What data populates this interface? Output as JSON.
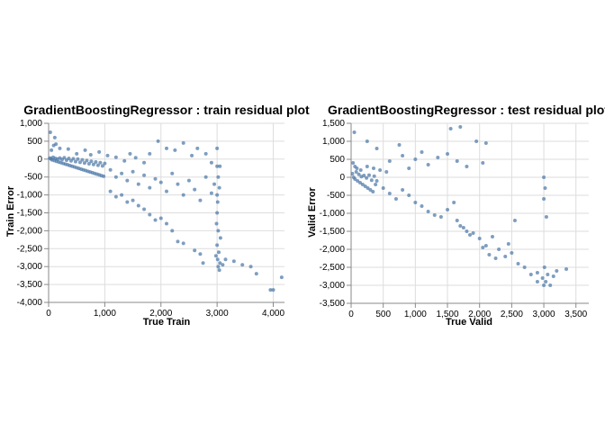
{
  "chart_data": [
    {
      "type": "scatter",
      "title": "GradientBoostingRegressor : train residual plot",
      "xlabel": "True Train",
      "ylabel": "Train Error",
      "xlim": [
        0,
        4200
      ],
      "ylim": [
        -4000,
        1000
      ],
      "xticks": [
        0,
        1000,
        2000,
        3000,
        4000
      ],
      "yticks": [
        1000,
        500,
        0,
        -500,
        -1000,
        -1500,
        -2000,
        -2500,
        -3000,
        -3500,
        -4000
      ],
      "xtick_labels": [
        "0",
        "1,000",
        "2,000",
        "3,000",
        "4,000"
      ],
      "ytick_labels": [
        "1,000",
        "500",
        "0",
        "-500",
        "-1,000",
        "-1,500",
        "-2,000",
        "-2,500",
        "-3,000",
        "-3,500",
        "-4,000"
      ],
      "grid": true,
      "color": "#4c78a8",
      "points": [
        [
          20,
          30
        ],
        [
          40,
          10
        ],
        [
          60,
          -20
        ],
        [
          80,
          50
        ],
        [
          100,
          -40
        ],
        [
          120,
          20
        ],
        [
          140,
          -60
        ],
        [
          160,
          0
        ],
        [
          180,
          -80
        ],
        [
          200,
          30
        ],
        [
          220,
          -100
        ],
        [
          240,
          -10
        ],
        [
          260,
          -120
        ],
        [
          280,
          40
        ],
        [
          300,
          -140
        ],
        [
          320,
          -30
        ],
        [
          340,
          -160
        ],
        [
          360,
          20
        ],
        [
          380,
          -180
        ],
        [
          400,
          -50
        ],
        [
          420,
          -200
        ],
        [
          440,
          10
        ],
        [
          460,
          -220
        ],
        [
          480,
          -70
        ],
        [
          500,
          -240
        ],
        [
          520,
          0
        ],
        [
          540,
          -260
        ],
        [
          560,
          -90
        ],
        [
          580,
          -280
        ],
        [
          600,
          -20
        ],
        [
          620,
          -300
        ],
        [
          640,
          -110
        ],
        [
          660,
          -320
        ],
        [
          680,
          -40
        ],
        [
          700,
          -340
        ],
        [
          720,
          -130
        ],
        [
          740,
          -360
        ],
        [
          760,
          -60
        ],
        [
          780,
          -380
        ],
        [
          800,
          -150
        ],
        [
          820,
          -400
        ],
        [
          840,
          -80
        ],
        [
          860,
          -420
        ],
        [
          880,
          -170
        ],
        [
          900,
          -440
        ],
        [
          920,
          -100
        ],
        [
          940,
          -460
        ],
        [
          960,
          -190
        ],
        [
          980,
          -480
        ],
        [
          1000,
          -120
        ],
        [
          50,
          250
        ],
        [
          90,
          380
        ],
        [
          110,
          600
        ],
        [
          130,
          420
        ],
        [
          30,
          750
        ],
        [
          200,
          300
        ],
        [
          350,
          280
        ],
        [
          500,
          150
        ],
        [
          650,
          250
        ],
        [
          750,
          120
        ],
        [
          900,
          200
        ],
        [
          1050,
          100
        ],
        [
          1200,
          50
        ],
        [
          1350,
          -50
        ],
        [
          1450,
          150
        ],
        [
          1550,
          40
        ],
        [
          1700,
          -100
        ],
        [
          1800,
          150
        ],
        [
          1950,
          500
        ],
        [
          2100,
          300
        ],
        [
          2250,
          250
        ],
        [
          2400,
          450
        ],
        [
          2550,
          100
        ],
        [
          2650,
          300
        ],
        [
          2800,
          150
        ],
        [
          2900,
          -100
        ],
        [
          3000,
          300
        ],
        [
          3050,
          -200
        ],
        [
          1100,
          -300
        ],
        [
          1200,
          -500
        ],
        [
          1300,
          -400
        ],
        [
          1400,
          -600
        ],
        [
          1500,
          -350
        ],
        [
          1600,
          -700
        ],
        [
          1700,
          -450
        ],
        [
          1800,
          -800
        ],
        [
          1900,
          -550
        ],
        [
          2000,
          -650
        ],
        [
          2100,
          -900
        ],
        [
          2200,
          -400
        ],
        [
          2300,
          -700
        ],
        [
          2400,
          -1000
        ],
        [
          2500,
          -600
        ],
        [
          2600,
          -850
        ],
        [
          2700,
          -1150
        ],
        [
          2800,
          -500
        ],
        [
          2900,
          -950
        ],
        [
          2950,
          -700
        ],
        [
          1100,
          -900
        ],
        [
          1200,
          -1050
        ],
        [
          1300,
          -1000
        ],
        [
          1400,
          -1200
        ],
        [
          1500,
          -1150
        ],
        [
          1600,
          -1300
        ],
        [
          1700,
          -1400
        ],
        [
          1800,
          -1550
        ],
        [
          1900,
          -1700
        ],
        [
          2000,
          -1650
        ],
        [
          2100,
          -1800
        ],
        [
          2200,
          -2000
        ],
        [
          2300,
          -2300
        ],
        [
          2400,
          -2350
        ],
        [
          2600,
          -2550
        ],
        [
          2700,
          -2650
        ],
        [
          2750,
          -2900
        ],
        [
          3000,
          -1000
        ],
        [
          3000,
          -1500
        ],
        [
          3020,
          -2000
        ],
        [
          3000,
          -2400
        ],
        [
          3030,
          -2600
        ],
        [
          3010,
          -2800
        ],
        [
          3050,
          -2900
        ],
        [
          3020,
          -3000
        ],
        [
          2980,
          -2700
        ],
        [
          3040,
          -3100
        ],
        [
          3100,
          -2950
        ],
        [
          3150,
          -2800
        ],
        [
          3300,
          -2850
        ],
        [
          3450,
          -2950
        ],
        [
          3600,
          -3000
        ],
        [
          3700,
          -3200
        ],
        [
          3950,
          -3650
        ],
        [
          4000,
          -3650
        ],
        [
          4150,
          -3300
        ],
        [
          3000,
          -200
        ],
        [
          3020,
          -500
        ],
        [
          3040,
          -800
        ],
        [
          3010,
          -1200
        ],
        [
          2990,
          -1800
        ],
        [
          3060,
          -2200
        ]
      ]
    },
    {
      "type": "scatter",
      "title": "GradientBoostingRegressor : test residual plot",
      "xlabel": "True Valid",
      "ylabel": "Valid Error",
      "xlim": [
        0,
        3700
      ],
      "ylim": [
        -3500,
        1500
      ],
      "xticks": [
        0,
        500,
        1000,
        1500,
        2000,
        2500,
        3000,
        3500
      ],
      "yticks": [
        1500,
        1000,
        500,
        0,
        -500,
        -1000,
        -1500,
        -2000,
        -2500,
        -3000,
        -3500
      ],
      "xtick_labels": [
        "0",
        "500",
        "1,000",
        "1,500",
        "2,000",
        "2,500",
        "3,000",
        "3,500"
      ],
      "ytick_labels": [
        "1,500",
        "1,000",
        "500",
        "0",
        "-500",
        "-1,000",
        "-1,500",
        "-2,000",
        "-2,500",
        "-3,000",
        "-3,500"
      ],
      "grid": true,
      "color": "#4c78a8",
      "points": [
        [
          20,
          100
        ],
        [
          40,
          0
        ],
        [
          60,
          -50
        ],
        [
          80,
          150
        ],
        [
          100,
          -100
        ],
        [
          120,
          80
        ],
        [
          140,
          -150
        ],
        [
          160,
          20
        ],
        [
          180,
          -200
        ],
        [
          200,
          50
        ],
        [
          220,
          -250
        ],
        [
          240,
          -20
        ],
        [
          260,
          -300
        ],
        [
          280,
          60
        ],
        [
          300,
          -350
        ],
        [
          320,
          -80
        ],
        [
          340,
          -400
        ],
        [
          360,
          30
        ],
        [
          380,
          -200
        ],
        [
          400,
          -100
        ],
        [
          30,
          400
        ],
        [
          60,
          300
        ],
        [
          90,
          250
        ],
        [
          150,
          200
        ],
        [
          250,
          300
        ],
        [
          350,
          250
        ],
        [
          450,
          200
        ],
        [
          550,
          150
        ],
        [
          50,
          1250
        ],
        [
          250,
          1000
        ],
        [
          400,
          800
        ],
        [
          600,
          450
        ],
        [
          750,
          900
        ],
        [
          800,
          600
        ],
        [
          900,
          250
        ],
        [
          1000,
          500
        ],
        [
          1100,
          700
        ],
        [
          1200,
          350
        ],
        [
          1350,
          550
        ],
        [
          1500,
          650
        ],
        [
          1550,
          1350
        ],
        [
          1650,
          450
        ],
        [
          1700,
          1400
        ],
        [
          1800,
          300
        ],
        [
          1950,
          1000
        ],
        [
          2050,
          400
        ],
        [
          2100,
          950
        ],
        [
          500,
          -300
        ],
        [
          600,
          -450
        ],
        [
          700,
          -600
        ],
        [
          800,
          -350
        ],
        [
          900,
          -500
        ],
        [
          1000,
          -700
        ],
        [
          1100,
          -800
        ],
        [
          1200,
          -950
        ],
        [
          1300,
          -1050
        ],
        [
          1400,
          -1100
        ],
        [
          1500,
          -900
        ],
        [
          1600,
          -700
        ],
        [
          1700,
          -1350
        ],
        [
          1800,
          -1500
        ],
        [
          1900,
          -1550
        ],
        [
          2000,
          -1700
        ],
        [
          2100,
          -1900
        ],
        [
          2200,
          -1650
        ],
        [
          2300,
          -2000
        ],
        [
          2400,
          -2200
        ],
        [
          2500,
          -2100
        ],
        [
          2600,
          -2400
        ],
        [
          2700,
          -2500
        ],
        [
          2800,
          -2700
        ],
        [
          2900,
          -2650
        ],
        [
          1650,
          -1200
        ],
        [
          1750,
          -1400
        ],
        [
          1850,
          -1600
        ],
        [
          2050,
          -1950
        ],
        [
          2150,
          -2150
        ],
        [
          2250,
          -2250
        ],
        [
          2450,
          -1850
        ],
        [
          2550,
          -1200
        ],
        [
          3000,
          0
        ],
        [
          3020,
          -300
        ],
        [
          3000,
          -600
        ],
        [
          3040,
          -1100
        ],
        [
          3010,
          -2500
        ],
        [
          3060,
          -2700
        ],
        [
          3030,
          -2900
        ],
        [
          3000,
          -3000
        ],
        [
          2980,
          -2800
        ],
        [
          3100,
          -3000
        ],
        [
          3200,
          -2600
        ],
        [
          3350,
          -2550
        ],
        [
          2900,
          -2900
        ],
        [
          3150,
          -2750
        ]
      ]
    }
  ]
}
